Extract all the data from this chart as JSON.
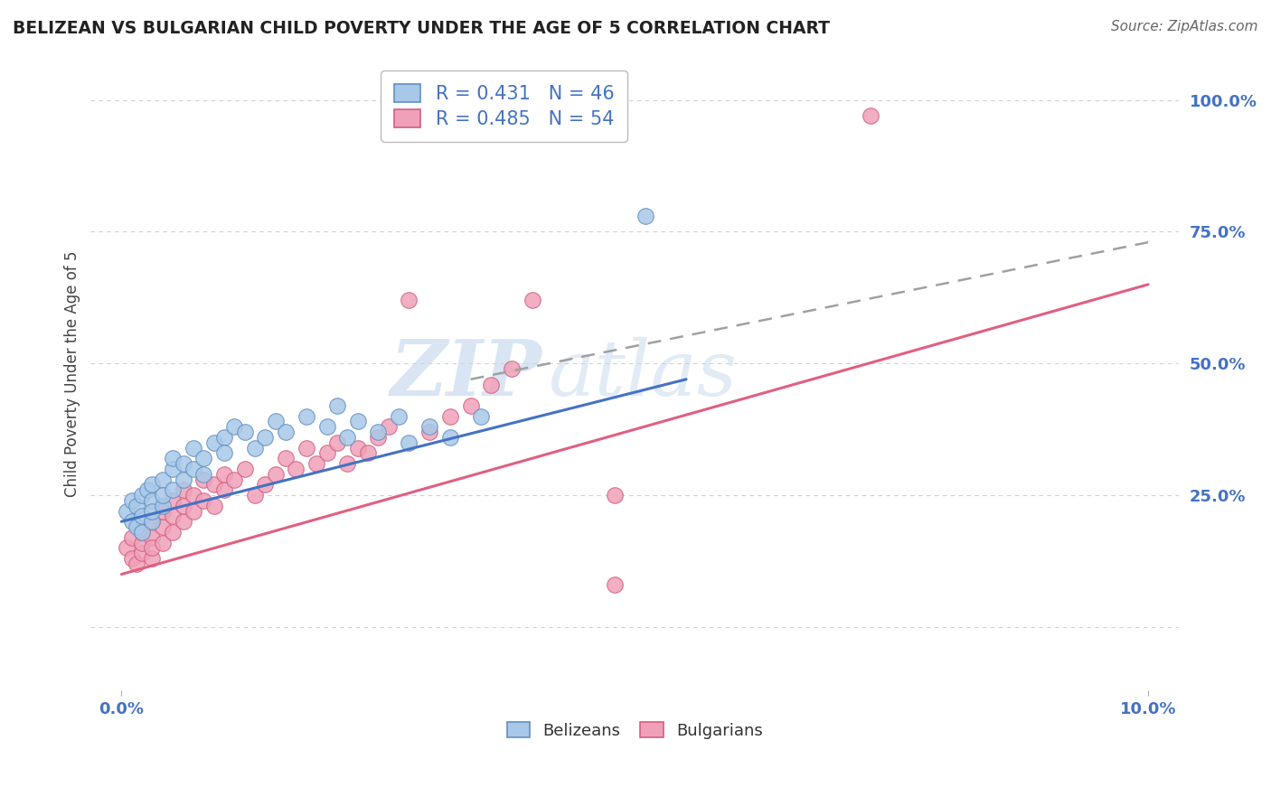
{
  "title": "BELIZEAN VS BULGARIAN CHILD POVERTY UNDER THE AGE OF 5 CORRELATION CHART",
  "source": "Source: ZipAtlas.com",
  "ylabel": "Child Poverty Under the Age of 5",
  "y_tick_positions": [
    0.0,
    0.25,
    0.5,
    0.75,
    1.0
  ],
  "y_tick_labels": [
    "",
    "25.0%",
    "50.0%",
    "75.0%",
    "100.0%"
  ],
  "x_tick_labels": [
    "0.0%",
    "10.0%"
  ],
  "x_lim": [
    0.0,
    0.1
  ],
  "y_lim": [
    -0.12,
    1.08
  ],
  "watermark_zip": "ZIP",
  "watermark_atlas": "atlas",
  "legend_belizean_label": "R = 0.431   N = 46",
  "legend_bulgarian_label": "R = 0.485   N = 54",
  "bottom_legend_belizean": "Belizeans",
  "bottom_legend_bulgarian": "Bulgarians",
  "belizean_color": "#A8C8E8",
  "bulgarian_color": "#F0A0B8",
  "belizean_edge_color": "#6090C0",
  "bulgarian_edge_color": "#D06080",
  "belizean_line_color": "#4472C4",
  "bulgarian_line_color": "#E06080",
  "dashed_line_color": "#A0A0A0",
  "background_color": "#FFFFFF",
  "grid_color": "#CCCCCC",
  "title_color": "#222222",
  "axis_label_color": "#4472C4",
  "source_color": "#666666",
  "belizean_x": [
    0.0005,
    0.001,
    0.001,
    0.0015,
    0.0015,
    0.002,
    0.002,
    0.002,
    0.0025,
    0.003,
    0.003,
    0.003,
    0.003,
    0.004,
    0.004,
    0.004,
    0.005,
    0.005,
    0.005,
    0.006,
    0.006,
    0.007,
    0.007,
    0.008,
    0.008,
    0.009,
    0.01,
    0.01,
    0.011,
    0.012,
    0.013,
    0.014,
    0.015,
    0.016,
    0.018,
    0.02,
    0.021,
    0.022,
    0.023,
    0.025,
    0.027,
    0.028,
    0.03,
    0.032,
    0.035,
    0.051
  ],
  "belizean_y": [
    0.22,
    0.2,
    0.24,
    0.19,
    0.23,
    0.21,
    0.25,
    0.18,
    0.26,
    0.2,
    0.24,
    0.22,
    0.27,
    0.23,
    0.28,
    0.25,
    0.3,
    0.26,
    0.32,
    0.28,
    0.31,
    0.3,
    0.34,
    0.32,
    0.29,
    0.35,
    0.36,
    0.33,
    0.38,
    0.37,
    0.34,
    0.36,
    0.39,
    0.37,
    0.4,
    0.38,
    0.42,
    0.36,
    0.39,
    0.37,
    0.4,
    0.35,
    0.38,
    0.36,
    0.4,
    0.78
  ],
  "bulgarian_x": [
    0.0005,
    0.001,
    0.001,
    0.0015,
    0.002,
    0.002,
    0.002,
    0.003,
    0.003,
    0.003,
    0.003,
    0.004,
    0.004,
    0.004,
    0.005,
    0.005,
    0.005,
    0.006,
    0.006,
    0.006,
    0.007,
    0.007,
    0.008,
    0.008,
    0.009,
    0.009,
    0.01,
    0.01,
    0.011,
    0.012,
    0.013,
    0.014,
    0.015,
    0.016,
    0.017,
    0.018,
    0.019,
    0.02,
    0.021,
    0.022,
    0.023,
    0.024,
    0.025,
    0.026,
    0.028,
    0.03,
    0.032,
    0.034,
    0.036,
    0.038,
    0.04,
    0.048,
    0.073,
    0.048
  ],
  "bulgarian_y": [
    0.15,
    0.13,
    0.17,
    0.12,
    0.14,
    0.16,
    0.18,
    0.13,
    0.17,
    0.2,
    0.15,
    0.19,
    0.22,
    0.16,
    0.21,
    0.18,
    0.24,
    0.2,
    0.23,
    0.26,
    0.22,
    0.25,
    0.24,
    0.28,
    0.23,
    0.27,
    0.26,
    0.29,
    0.28,
    0.3,
    0.25,
    0.27,
    0.29,
    0.32,
    0.3,
    0.34,
    0.31,
    0.33,
    0.35,
    0.31,
    0.34,
    0.33,
    0.36,
    0.38,
    0.62,
    0.37,
    0.4,
    0.42,
    0.46,
    0.49,
    0.62,
    0.25,
    0.97,
    0.08
  ],
  "belizean_trend_x": [
    0.0,
    0.055
  ],
  "belizean_trend_y": [
    0.2,
    0.47
  ],
  "bulgarian_trend_x": [
    0.0,
    0.1
  ],
  "bulgarian_trend_y": [
    0.1,
    0.65
  ],
  "dashed_trend_x": [
    0.034,
    0.1
  ],
  "dashed_trend_y": [
    0.47,
    0.73
  ]
}
